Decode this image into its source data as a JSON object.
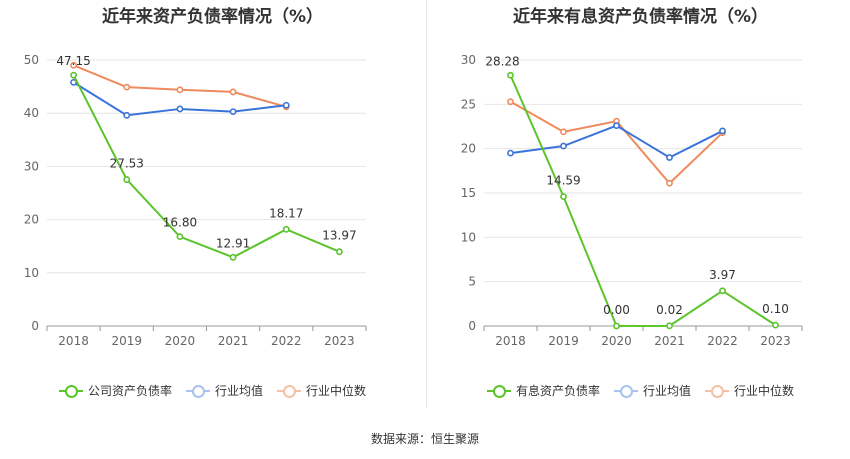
{
  "footer": {
    "source": "数据来源：恒生聚源"
  },
  "colors": {
    "company": "#5ac42b",
    "avg": "#3b73d9",
    "median": "#f08a5d",
    "grid": "#e6e6e6",
    "axis": "#999999"
  },
  "chart_data": [
    {
      "type": "line",
      "title": "近年来资产负债率情况（%）",
      "categories": [
        "2018",
        "2019",
        "2020",
        "2021",
        "2022",
        "2023"
      ],
      "ylim": [
        0,
        50
      ],
      "yticks": [
        0,
        10,
        20,
        30,
        40,
        50
      ],
      "grid": true,
      "legend_position": "bottom",
      "series": [
        {
          "name": "公司资产负债率",
          "color": "#5ac42b",
          "values": [
            47.15,
            27.53,
            16.8,
            12.91,
            18.17,
            13.97
          ],
          "labels": [
            "47.15",
            "27.53",
            "16.80",
            "12.91",
            "18.17",
            "13.97"
          ]
        },
        {
          "name": "行业均值",
          "color": "#3b73d9",
          "values": [
            45.8,
            39.6,
            40.8,
            40.3,
            41.5,
            null
          ]
        },
        {
          "name": "行业中位数",
          "color": "#f08a5d",
          "values": [
            49.0,
            44.9,
            44.4,
            44.0,
            41.2,
            null
          ]
        }
      ]
    },
    {
      "type": "line",
      "title": "近年来有息资产负债率情况（%）",
      "categories": [
        "2018",
        "2019",
        "2020",
        "2021",
        "2022",
        "2023"
      ],
      "ylim": [
        0,
        30
      ],
      "yticks": [
        0,
        5,
        10,
        15,
        20,
        25,
        30
      ],
      "grid": true,
      "legend_position": "bottom",
      "series": [
        {
          "name": "有息资产负债率",
          "color": "#5ac42b",
          "values": [
            28.28,
            14.59,
            0.0,
            0.02,
            3.97,
            0.1
          ],
          "labels": [
            "28.28",
            "14.59",
            "0.00",
            "0.02",
            "3.97",
            "0.10"
          ]
        },
        {
          "name": "行业均值",
          "color": "#3b73d9",
          "values": [
            19.5,
            20.3,
            22.6,
            19.0,
            22.0,
            null
          ]
        },
        {
          "name": "行业中位数",
          "color": "#f08a5d",
          "values": [
            25.3,
            21.9,
            23.1,
            16.1,
            21.8,
            null
          ]
        }
      ]
    }
  ]
}
